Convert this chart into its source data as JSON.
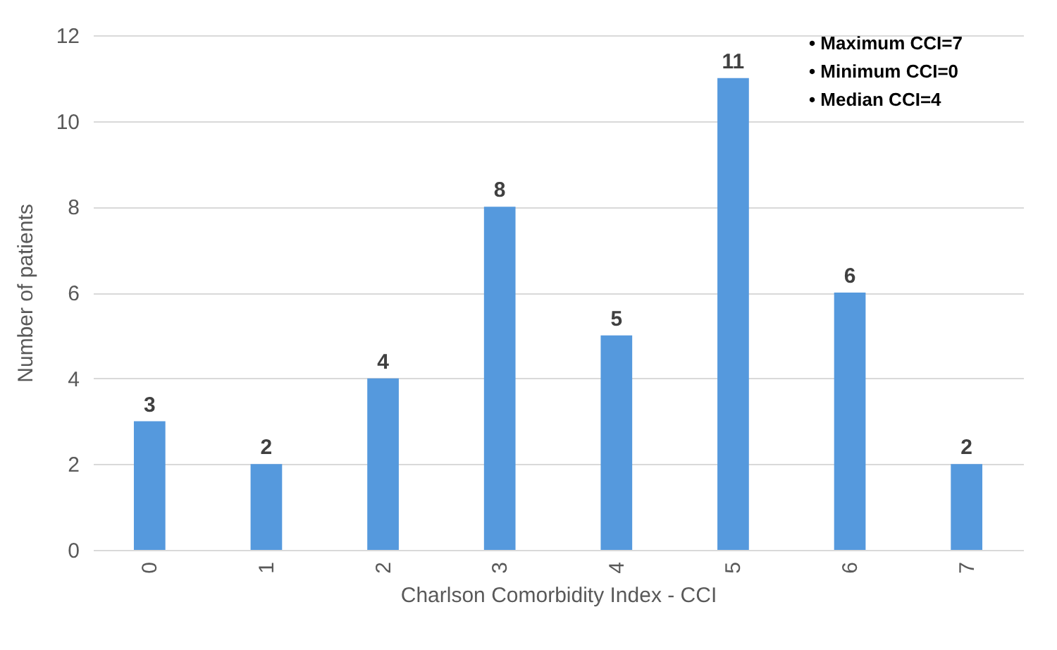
{
  "chart_data": {
    "type": "bar",
    "xlabel": "Charlson Comorbidity Index - CCI",
    "ylabel": "Number of patients",
    "categories": [
      "0",
      "1",
      "2",
      "3",
      "4",
      "5",
      "6",
      "7"
    ],
    "values": [
      3,
      2,
      4,
      8,
      5,
      11,
      6,
      2
    ],
    "color": "#5599dd",
    "ylim": [
      0,
      12
    ],
    "yticks": [
      0,
      2,
      4,
      6,
      8,
      10,
      12
    ],
    "grid": "y",
    "data_labels": true,
    "annotations": [
      "• Maximum CCI=7",
      "• Minimum CCI=0",
      "• Median CCI=4"
    ]
  }
}
